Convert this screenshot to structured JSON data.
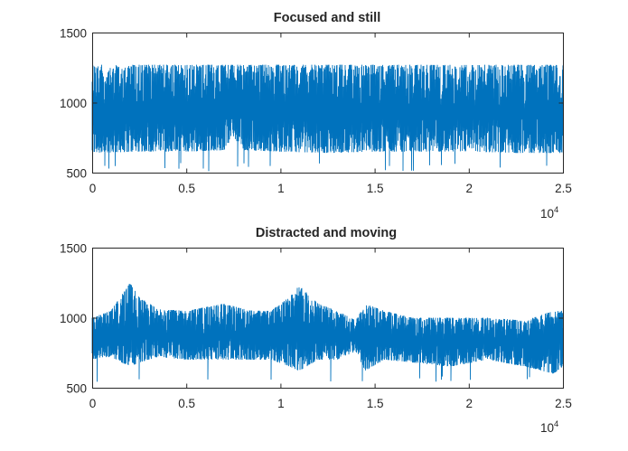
{
  "chart_data": [
    {
      "type": "line",
      "title": "Focused and still",
      "xlabel": "",
      "ylabel": "",
      "xlim": [
        0,
        25000
      ],
      "ylim": [
        500,
        1500
      ],
      "xticks": [
        0,
        5000,
        10000,
        15000,
        20000,
        25000
      ],
      "xtick_labels": [
        "0",
        "0.5",
        "1",
        "1.5",
        "2",
        "2.5"
      ],
      "yticks": [
        500,
        1000,
        1500
      ],
      "ytick_labels": [
        "500",
        "1000",
        "1500"
      ],
      "x_exponent": {
        "base": "10",
        "power": "4"
      },
      "grid": false,
      "series": [
        {
          "color": "#0072BD",
          "n_samples": 25000,
          "envelope": {
            "x": [
              0,
              2500,
              5000,
              7000,
              7500,
              8000,
              10000,
              12500,
              15000,
              17500,
              20000,
              22500,
              25000
            ],
            "center": [
              930,
              930,
              925,
              930,
              990,
              930,
              925,
              920,
              925,
              925,
              925,
              920,
              925
            ],
            "upper": [
              1270,
              1270,
              1270,
              1270,
              1270,
              1270,
              1270,
              1270,
              1270,
              1270,
              1270,
              1270,
              1270
            ],
            "lower": [
              640,
              650,
              650,
              660,
              760,
              660,
              650,
              640,
              650,
              650,
              650,
              640,
              640
            ],
            "extreme_low": 510
          }
        }
      ]
    },
    {
      "type": "line",
      "title": "Distracted and moving",
      "xlabel": "",
      "ylabel": "",
      "xlim": [
        0,
        25000
      ],
      "ylim": [
        500,
        1500
      ],
      "xticks": [
        0,
        5000,
        10000,
        15000,
        20000,
        25000
      ],
      "xtick_labels": [
        "0",
        "0.5",
        "1",
        "1.5",
        "2",
        "2.5"
      ],
      "yticks": [
        500,
        1000,
        1500
      ],
      "ytick_labels": [
        "500",
        "1000",
        "1500"
      ],
      "x_exponent": {
        "base": "10",
        "power": "4"
      },
      "grid": false,
      "series": [
        {
          "color": "#0072BD",
          "n_samples": 25000,
          "envelope": {
            "x": [
              0,
              1000,
              2000,
              2500,
              3500,
              5000,
              7000,
              8500,
              9500,
              10500,
              11000,
              12000,
              13000,
              14000,
              14500,
              15500,
              17000,
              19000,
              21000,
              23000,
              24500,
              25000
            ],
            "center": [
              850,
              850,
              900,
              880,
              870,
              860,
              870,
              870,
              850,
              900,
              930,
              880,
              850,
              870,
              850,
              870,
              830,
              820,
              840,
              820,
              830,
              870
            ],
            "upper": [
              1000,
              1050,
              1250,
              1150,
              1060,
              1050,
              1100,
              1050,
              1050,
              1150,
              1230,
              1100,
              1050,
              980,
              1100,
              1050,
              1000,
              1000,
              1000,
              980,
              1050,
              1050
            ],
            "lower": [
              700,
              720,
              650,
              680,
              720,
              700,
              700,
              700,
              700,
              650,
              620,
              700,
              700,
              760,
              620,
              700,
              680,
              650,
              700,
              650,
              600,
              650
            ],
            "extreme_low": 530
          }
        }
      ]
    }
  ]
}
